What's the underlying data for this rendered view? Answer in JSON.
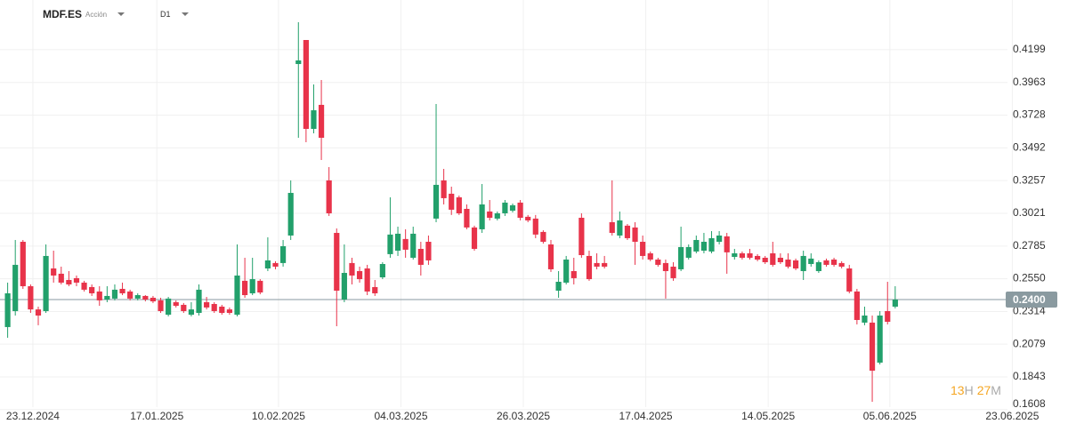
{
  "header": {
    "symbol": "MDF.ES",
    "asset_type": "Acción",
    "timeframe": "D1"
  },
  "chart_data": {
    "type": "candlestick",
    "up_color": "#22a06b",
    "down_color": "#e8334a",
    "grid": true,
    "open": [
      0.2202,
      0.2317,
      0.2816,
      0.2496,
      0.2329,
      0.2317,
      0.2624,
      0.2586,
      0.2541,
      0.2554,
      0.2522,
      0.249,
      0.2458,
      0.24,
      0.2407,
      0.2477,
      0.2458,
      0.2407,
      0.2426,
      0.2413,
      0.2394,
      0.2291,
      0.2381,
      0.2362,
      0.2291,
      0.2304,
      0.2381,
      0.2368,
      0.2349,
      0.2329,
      0.2291,
      0.2535,
      0.2445,
      0.2535,
      0.2624,
      0.2663,
      0.2663,
      0.2861,
      0.4096,
      0.4269,
      0.3629,
      0.3802,
      0.3258,
      0.288,
      0.24,
      0.2663,
      0.2605,
      0.2624,
      0.249,
      0.256,
      0.2727,
      0.2752,
      0.2836,
      0.2701,
      0.2765,
      0.2816,
      0.2983,
      0.3258,
      0.3162,
      0.3136,
      0.3053,
      0.2919,
      0.2906,
      0.3034,
      0.2983,
      0.3021,
      0.304,
      0.3098,
      0.2996,
      0.2983,
      0.2887,
      0.2797,
      0.2464,
      0.2522,
      0.2605,
      0.2989,
      0.2714,
      0.2663,
      0.2663,
      0.2957,
      0.2861,
      0.2932,
      0.2919,
      0.2816,
      0.2733,
      0.2688,
      0.2663,
      0.2637,
      0.2618,
      0.2701,
      0.2746,
      0.2752,
      0.2746,
      0.2816,
      0.2855,
      0.2707,
      0.2733,
      0.2733,
      0.2714,
      0.2701,
      0.2733,
      0.2701,
      0.2688,
      0.2682,
      0.2605,
      0.2656,
      0.2605,
      0.2682,
      0.2688,
      0.2663,
      0.2624,
      0.2458,
      0.2234,
      0.2234,
      0.1946,
      0.2317,
      0.2349
    ],
    "high": [
      0.2522,
      0.2829,
      0.2829,
      0.2509,
      0.2349,
      0.2797,
      0.2752,
      0.2637,
      0.2605,
      0.2573,
      0.2535,
      0.2509,
      0.2496,
      0.2496,
      0.2509,
      0.2522,
      0.2471,
      0.2445,
      0.2432,
      0.2426,
      0.2413,
      0.2419,
      0.2394,
      0.2375,
      0.2381,
      0.2509,
      0.2419,
      0.2381,
      0.2362,
      0.2343,
      0.2797,
      0.2701,
      0.2701,
      0.2547,
      0.2848,
      0.2676,
      0.2829,
      0.3258,
      0.4397,
      0.4269,
      0.3949,
      0.3981,
      0.3354,
      0.2912,
      0.2797,
      0.2701,
      0.2637,
      0.265,
      0.2541,
      0.2669,
      0.3136,
      0.2925,
      0.2906,
      0.2925,
      0.2816,
      0.2861,
      0.3808,
      0.3341,
      0.3213,
      0.3149,
      0.3085,
      0.2932,
      0.3232,
      0.3117,
      0.3034,
      0.3117,
      0.3091,
      0.3117,
      0.3009,
      0.3009,
      0.2899,
      0.2829,
      0.2605,
      0.2714,
      0.2701,
      0.3021,
      0.2752,
      0.2733,
      0.2714,
      0.3258,
      0.3034,
      0.2944,
      0.2957,
      0.2861,
      0.2746,
      0.2701,
      0.2688,
      0.2669,
      0.2925,
      0.2797,
      0.2861,
      0.288,
      0.2893,
      0.2893,
      0.288,
      0.2765,
      0.2746,
      0.2765,
      0.2727,
      0.2714,
      0.2816,
      0.2733,
      0.2733,
      0.2695,
      0.2752,
      0.2733,
      0.2682,
      0.2695,
      0.2701,
      0.2676,
      0.265,
      0.2477,
      0.2349,
      0.2285,
      0.2317,
      0.2528,
      0.2496
    ],
    "low": [
      0.2125,
      0.2285,
      0.2477,
      0.2304,
      0.2215,
      0.2304,
      0.2522,
      0.2509,
      0.2496,
      0.2496,
      0.2458,
      0.2426,
      0.2355,
      0.2381,
      0.2394,
      0.2432,
      0.2394,
      0.2394,
      0.2387,
      0.2375,
      0.2304,
      0.2279,
      0.2343,
      0.2304,
      0.2279,
      0.2285,
      0.2329,
      0.2304,
      0.2291,
      0.2291,
      0.2279,
      0.2413,
      0.2432,
      0.2438,
      0.2605,
      0.2618,
      0.2637,
      0.2829,
      0.3565,
      0.3533,
      0.3597,
      0.3405,
      0.3002,
      0.2208,
      0.2381,
      0.2509,
      0.2522,
      0.2432,
      0.2426,
      0.2547,
      0.2701,
      0.2714,
      0.2701,
      0.2688,
      0.2573,
      0.265,
      0.2957,
      0.3085,
      0.3009,
      0.3009,
      0.2906,
      0.2752,
      0.288,
      0.297,
      0.297,
      0.3002,
      0.3027,
      0.297,
      0.2957,
      0.2842,
      0.2803,
      0.2599,
      0.2413,
      0.2509,
      0.2509,
      0.2701,
      0.2535,
      0.2618,
      0.2624,
      0.2861,
      0.2842,
      0.2829,
      0.265,
      0.2688,
      0.2676,
      0.2637,
      0.2407,
      0.2535,
      0.2605,
      0.2688,
      0.2733,
      0.2733,
      0.2733,
      0.2797,
      0.2586,
      0.2688,
      0.2688,
      0.2688,
      0.2676,
      0.2656,
      0.2637,
      0.2656,
      0.2624,
      0.2612,
      0.2541,
      0.2637,
      0.2592,
      0.2637,
      0.2637,
      0.2624,
      0.2445,
      0.2221,
      0.2215,
      0.1664,
      0.1933,
      0.2221,
      0.2336
    ],
    "close": [
      0.2445,
      0.265,
      0.2496,
      0.2329,
      0.2285,
      0.2714,
      0.2573,
      0.2522,
      0.2509,
      0.2522,
      0.2471,
      0.2445,
      0.2394,
      0.2426,
      0.2471,
      0.2445,
      0.2407,
      0.2432,
      0.24,
      0.2387,
      0.2317,
      0.2407,
      0.2355,
      0.2317,
      0.2329,
      0.2471,
      0.2343,
      0.2317,
      0.2304,
      0.2304,
      0.2573,
      0.2432,
      0.2547,
      0.2451,
      0.2682,
      0.2637,
      0.2784,
      0.3168,
      0.4122,
      0.3629,
      0.3763,
      0.3565,
      0.3021,
      0.2464,
      0.2592,
      0.2573,
      0.2547,
      0.2458,
      0.2445,
      0.2656,
      0.2868,
      0.2874,
      0.2759,
      0.2874,
      0.265,
      0.2682,
      0.3226,
      0.313,
      0.3047,
      0.3021,
      0.2919,
      0.2765,
      0.3085,
      0.2989,
      0.3021,
      0.3098,
      0.3079,
      0.2989,
      0.297,
      0.2868,
      0.2816,
      0.2618,
      0.2528,
      0.2688,
      0.2554,
      0.272,
      0.2547,
      0.2637,
      0.2637,
      0.288,
      0.297,
      0.2842,
      0.2816,
      0.2714,
      0.2688,
      0.265,
      0.2605,
      0.2554,
      0.2778,
      0.2778,
      0.2829,
      0.2816,
      0.2842,
      0.2861,
      0.274,
      0.2733,
      0.2701,
      0.2701,
      0.2688,
      0.2669,
      0.265,
      0.2669,
      0.2637,
      0.2624,
      0.2714,
      0.2695,
      0.2669,
      0.265,
      0.265,
      0.2637,
      0.2458,
      0.2253,
      0.2285,
      0.1888,
      0.2285,
      0.224,
      0.24
    ],
    "ylim": [
      0.16,
      0.4557
    ],
    "yticks": [
      0.4199,
      0.3963,
      0.3728,
      0.3492,
      0.3257,
      0.3021,
      0.2785,
      {
        "value": 0.255,
        "label": "0.2550"
      },
      0.2314,
      0.2079,
      0.1843,
      0.1608
    ],
    "xlim": [
      0,
      134
    ],
    "xticks": [
      {
        "value": 4.3,
        "label": "23.12.2024"
      },
      {
        "value": 20.5,
        "label": "17.01.2025"
      },
      {
        "value": 36.4,
        "label": "10.02.2025"
      },
      {
        "value": 52.4,
        "label": "04.03.2025"
      },
      {
        "value": 68.4,
        "label": "26.03.2025"
      },
      {
        "value": 84.4,
        "label": "17.04.2025"
      },
      {
        "value": 100.4,
        "label": "14.05.2025"
      },
      {
        "value": 116.3,
        "label": "05.06.2025"
      },
      {
        "value": 132.3,
        "label": "23.06.2025"
      }
    ],
    "last_price": {
      "value": 0.24,
      "label": "0.2400"
    },
    "countdown": {
      "hours": 13,
      "hours_unit": "H",
      "minutes": 27,
      "minutes_unit": "M"
    }
  }
}
